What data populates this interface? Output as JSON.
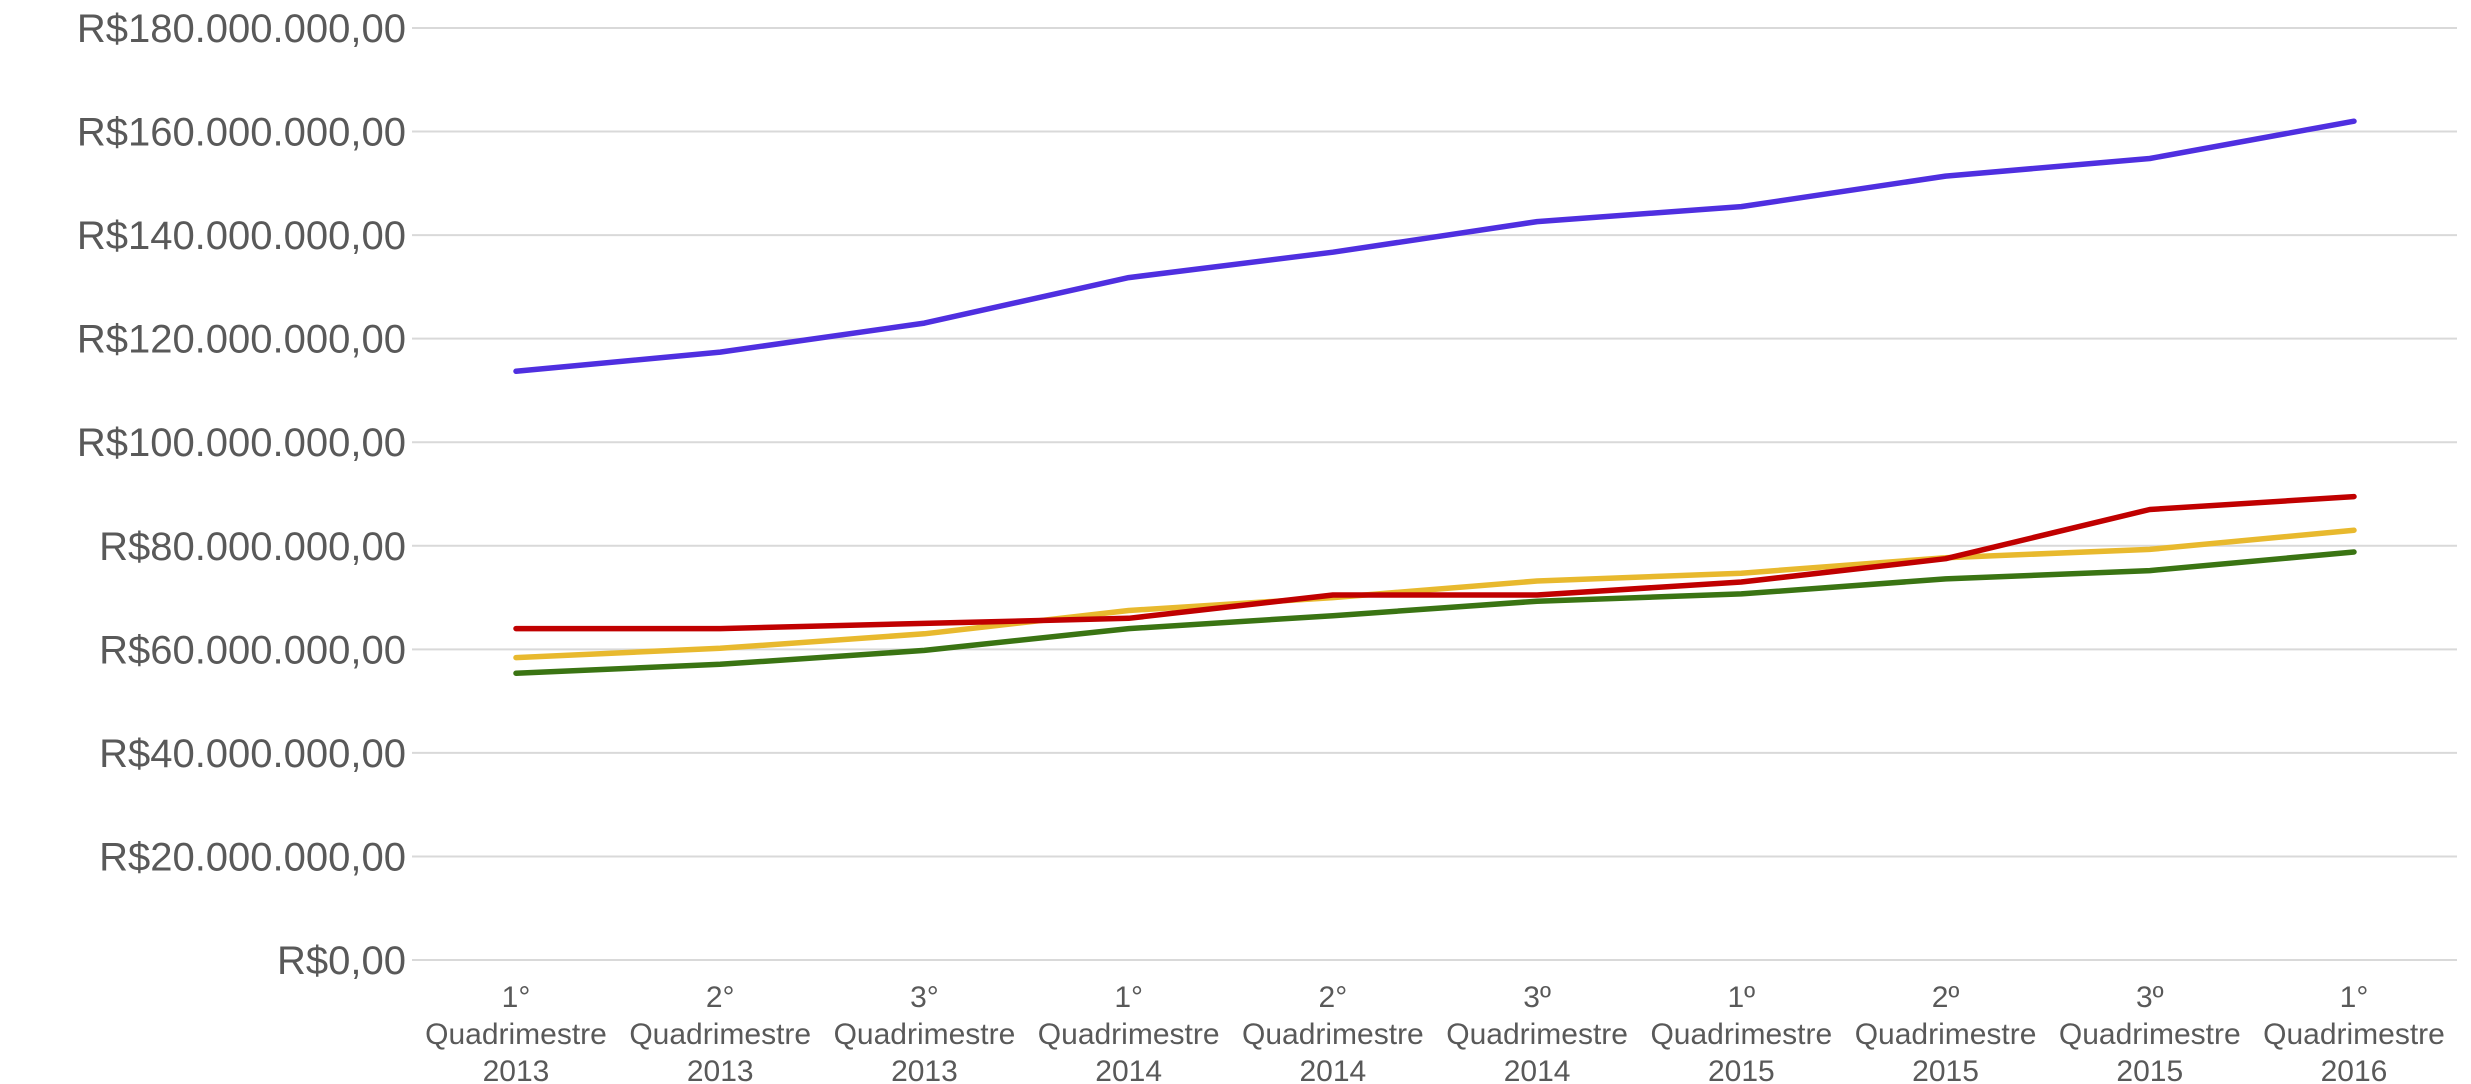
{
  "chart_data": {
    "type": "line",
    "title": "",
    "xlabel": "",
    "ylabel": "",
    "ylim": [
      0,
      180000000
    ],
    "grid": true,
    "legend": "none",
    "y_tick_values": [
      0,
      20000000,
      40000000,
      60000000,
      80000000,
      100000000,
      120000000,
      140000000,
      160000000,
      180000000
    ],
    "y_tick_labels": [
      "R$0,00",
      "R$20.000.000,00",
      "R$40.000.000,00",
      "R$60.000.000,00",
      "R$80.000.000,00",
      "R$100.000.000,00",
      "R$120.000.000,00",
      "R$140.000.000,00",
      "R$160.000.000,00",
      "R$180.000.000,00"
    ],
    "categories": [
      [
        "1°",
        "Quadrimestre",
        "2013"
      ],
      [
        "2°",
        "Quadrimestre",
        "2013"
      ],
      [
        "3°",
        "Quadrimestre",
        "2013"
      ],
      [
        "1°",
        "Quadrimestre",
        "2014"
      ],
      [
        "2°",
        "Quadrimestre",
        "2014"
      ],
      [
        "3º",
        "Quadrimestre",
        "2014"
      ],
      [
        "1º",
        "Quadrimestre",
        "2015"
      ],
      [
        "2º",
        "Quadrimestre",
        "2015"
      ],
      [
        "3º",
        "Quadrimestre",
        "2015"
      ],
      [
        "1°",
        "Quadrimestre",
        "2016"
      ]
    ],
    "series": [
      {
        "color": "#4f2fe0",
        "values": [
          113700000,
          117400000,
          123000000,
          131800000,
          136700000,
          142600000,
          145500000,
          151400000,
          154800000,
          162000000
        ]
      },
      {
        "color": "#c00000",
        "values": [
          64000000,
          64000000,
          65000000,
          66000000,
          70500000,
          70500000,
          73000000,
          77500000,
          87000000,
          89500000
        ]
      },
      {
        "color": "#e8b92e",
        "values": [
          58400000,
          60200000,
          63000000,
          67500000,
          70000000,
          73200000,
          74700000,
          77700000,
          79300000,
          83000000
        ]
      },
      {
        "color": "#3a7413",
        "values": [
          55400000,
          57100000,
          59800000,
          64000000,
          66500000,
          69300000,
          70700000,
          73600000,
          75200000,
          78800000
        ]
      }
    ]
  }
}
